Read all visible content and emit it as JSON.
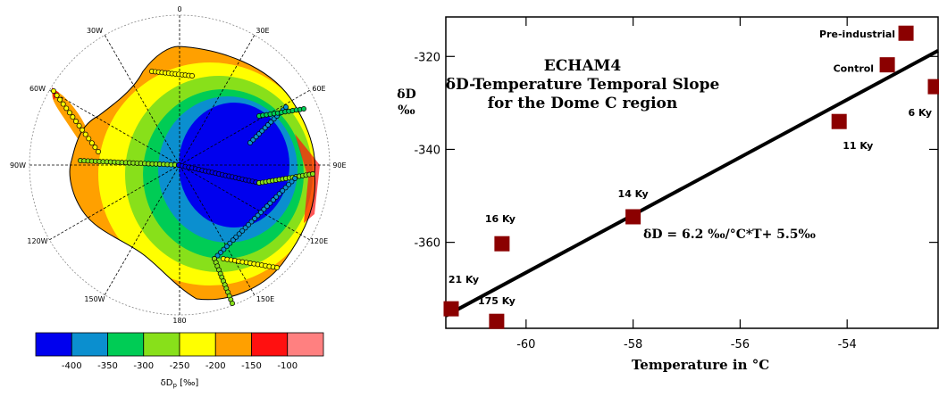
{
  "chart_data": [
    {
      "type": "heatmap",
      "longitude_labels": [
        "0",
        "30E",
        "60E",
        "90E",
        "120E",
        "150E",
        "180",
        "150W",
        "120W",
        "90W",
        "60W",
        "30W"
      ],
      "colorbar": {
        "colors": [
          "#0000ee",
          "#0b8fcf",
          "#00cc55",
          "#88e01a",
          "#ffff00",
          "#ffa000",
          "#ff1010",
          "#ff8080"
        ],
        "tick_labels": [
          "-400",
          "-350",
          "-300",
          "-250",
          "-200",
          "-150",
          "-100"
        ],
        "label": "δD",
        "label_sub": "p",
        "label_unit": " [‰]"
      }
    },
    {
      "type": "scatter",
      "title_lines": [
        "ECHAM4",
        "δD-Temperature Temporal Slope",
        "for the Dome C region"
      ],
      "xlabel": "Temperature in °C",
      "ylabel_lines": [
        "δD",
        "‰"
      ],
      "xlim": [
        -61.5,
        -52.3
      ],
      "ylim": [
        -378.5,
        -311.5
      ],
      "xticks": [
        -60,
        -58,
        -56,
        -54
      ],
      "xtick_labels": [
        "-60",
        "-58",
        "-56",
        "-54"
      ],
      "yticks": [
        -320,
        -340,
        -360
      ],
      "ytick_labels": [
        "-320",
        "-340",
        "-360"
      ],
      "points": [
        {
          "label": "Pre-industrial",
          "x": -52.9,
          "y": -315.0
        },
        {
          "label": "Control",
          "x": -53.25,
          "y": -321.8
        },
        {
          "label": "6 Ky",
          "x": -52.35,
          "y": -326.5
        },
        {
          "label": "11 Ky",
          "x": -54.15,
          "y": -334.0
        },
        {
          "label": "14 Ky",
          "x": -58.0,
          "y": -354.5
        },
        {
          "label": "16 Ky",
          "x": -60.45,
          "y": -360.3
        },
        {
          "label": "21 Ky",
          "x": -61.4,
          "y": -374.3
        },
        {
          "label": "175 Ky",
          "x": -60.55,
          "y": -377.0
        }
      ],
      "fit_line": {
        "equation": "δD = 6.2 ‰/°C*T+ 5.5‰",
        "slope": 6.2,
        "intercept": 5.5
      },
      "marker_color": "#8b0000"
    }
  ]
}
